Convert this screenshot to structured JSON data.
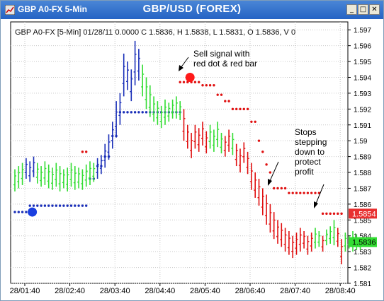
{
  "window": {
    "app_title": "GBP A0-FX 5-Min",
    "chart_title": "GBP/USD (FOREX)",
    "buttons": {
      "minimize": "_",
      "maximize": "□",
      "close": "✕"
    }
  },
  "info_line": "GBP A0-FX [5-Min] 01/28/11  0.0000  C 1.5836, H 1.5838, L 1.5831, O 1.5836, V 0",
  "annotations": {
    "sell_signal": [
      "Sell signal with",
      "red dot & red bar"
    ],
    "stops": [
      "Stops",
      "stepping",
      "down to",
      "protect",
      "profit"
    ]
  },
  "price_labels": {
    "stop": {
      "text": "1.5854",
      "value": 1.5854,
      "color": "#e83030"
    },
    "last": {
      "text": "1.5836",
      "value": 1.5836,
      "color": "#33dd33"
    }
  },
  "colors": {
    "up": "#33dd33",
    "down": "#e01010",
    "blue": "#1a2fb8",
    "stop_dot": "#e01010",
    "blue_dot": "#1a2fb8"
  },
  "chart_data": {
    "type": "bar",
    "title": "GBP/USD (FOREX)",
    "ylim": [
      1.581,
      1.5975
    ],
    "yticks": [
      "1.597",
      "1.596",
      "1.595",
      "1.594",
      "1.593",
      "1.592",
      "1.591",
      "1.59",
      "1.589",
      "1.588",
      "1.587",
      "1.586",
      "1.585",
      "1.584",
      "1.583",
      "1.582",
      "1.581"
    ],
    "xticks": [
      {
        "label": "28/01:40",
        "index": 0
      },
      {
        "label": "28/02:40",
        "index": 12
      },
      {
        "label": "28/03:40",
        "index": 24
      },
      {
        "label": "28/04:40",
        "index": 36
      },
      {
        "label": "28/05:40",
        "index": 48
      },
      {
        "label": "28/06:40",
        "index": 60
      },
      {
        "label": "28/07:40",
        "index": 72
      },
      {
        "label": "28/08:40",
        "index": 84
      }
    ],
    "bars": [
      {
        "h": 1.5882,
        "l": 1.5868,
        "c": "up"
      },
      {
        "h": 1.5884,
        "l": 1.587,
        "c": "up"
      },
      {
        "h": 1.5886,
        "l": 1.5872,
        "c": "up"
      },
      {
        "h": 1.5889,
        "l": 1.5876,
        "c": "blue"
      },
      {
        "h": 1.5887,
        "l": 1.5874,
        "c": "blue"
      },
      {
        "h": 1.589,
        "l": 1.5877,
        "c": "blue"
      },
      {
        "h": 1.5886,
        "l": 1.5873,
        "c": "up"
      },
      {
        "h": 1.5884,
        "l": 1.5871,
        "c": "up"
      },
      {
        "h": 1.5887,
        "l": 1.5872,
        "c": "up"
      },
      {
        "h": 1.5885,
        "l": 1.587,
        "c": "up"
      },
      {
        "h": 1.5883,
        "l": 1.5869,
        "c": "up"
      },
      {
        "h": 1.5886,
        "l": 1.5871,
        "c": "up"
      },
      {
        "h": 1.5884,
        "l": 1.5868,
        "c": "up"
      },
      {
        "h": 1.5882,
        "l": 1.587,
        "c": "up"
      },
      {
        "h": 1.5883,
        "l": 1.5868,
        "c": "up"
      },
      {
        "h": 1.5886,
        "l": 1.5871,
        "c": "up"
      },
      {
        "h": 1.5884,
        "l": 1.5869,
        "c": "up"
      },
      {
        "h": 1.5883,
        "l": 1.587,
        "c": "up"
      },
      {
        "h": 1.5882,
        "l": 1.5869,
        "c": "up"
      },
      {
        "h": 1.5885,
        "l": 1.5871,
        "c": "up"
      },
      {
        "h": 1.5887,
        "l": 1.5872,
        "c": "up"
      },
      {
        "h": 1.5886,
        "l": 1.5874,
        "c": "up"
      },
      {
        "h": 1.5889,
        "l": 1.5876,
        "c": "blue"
      },
      {
        "h": 1.5891,
        "l": 1.5879,
        "c": "blue"
      },
      {
        "h": 1.5898,
        "l": 1.5883,
        "c": "blue"
      },
      {
        "h": 1.5904,
        "l": 1.5888,
        "c": "blue"
      },
      {
        "h": 1.5912,
        "l": 1.5895,
        "c": "blue"
      },
      {
        "h": 1.5925,
        "l": 1.5902,
        "c": "blue"
      },
      {
        "h": 1.593,
        "l": 1.591,
        "c": "blue"
      },
      {
        "h": 1.5955,
        "l": 1.5928,
        "c": "blue"
      },
      {
        "h": 1.595,
        "l": 1.5932,
        "c": "blue"
      },
      {
        "h": 1.5945,
        "l": 1.5925,
        "c": "blue"
      },
      {
        "h": 1.5963,
        "l": 1.5935,
        "c": "blue"
      },
      {
        "h": 1.5958,
        "l": 1.5938,
        "c": "blue"
      },
      {
        "h": 1.5948,
        "l": 1.5928,
        "c": "up"
      },
      {
        "h": 1.594,
        "l": 1.592,
        "c": "up"
      },
      {
        "h": 1.5935,
        "l": 1.5915,
        "c": "up"
      },
      {
        "h": 1.5928,
        "l": 1.5912,
        "c": "up"
      },
      {
        "h": 1.5925,
        "l": 1.591,
        "c": "up"
      },
      {
        "h": 1.5922,
        "l": 1.5908,
        "c": "up"
      },
      {
        "h": 1.5926,
        "l": 1.591,
        "c": "up"
      },
      {
        "h": 1.5924,
        "l": 1.5912,
        "c": "up"
      },
      {
        "h": 1.5926,
        "l": 1.5914,
        "c": "up"
      },
      {
        "h": 1.5928,
        "l": 1.5914,
        "c": "up"
      },
      {
        "h": 1.5925,
        "l": 1.5913,
        "c": "up"
      },
      {
        "h": 1.592,
        "l": 1.59,
        "c": "down"
      },
      {
        "h": 1.591,
        "l": 1.5895,
        "c": "down"
      },
      {
        "h": 1.5905,
        "l": 1.5889,
        "c": "down"
      },
      {
        "h": 1.591,
        "l": 1.5895,
        "c": "down"
      },
      {
        "h": 1.5908,
        "l": 1.5893,
        "c": "down"
      },
      {
        "h": 1.5912,
        "l": 1.5897,
        "c": "down"
      },
      {
        "h": 1.5906,
        "l": 1.5892,
        "c": "down"
      },
      {
        "h": 1.591,
        "l": 1.5895,
        "c": "up"
      },
      {
        "h": 1.5907,
        "l": 1.5893,
        "c": "up"
      },
      {
        "h": 1.5912,
        "l": 1.5896,
        "c": "up"
      },
      {
        "h": 1.5905,
        "l": 1.5892,
        "c": "up"
      },
      {
        "h": 1.5903,
        "l": 1.589,
        "c": "down"
      },
      {
        "h": 1.5907,
        "l": 1.5893,
        "c": "down"
      },
      {
        "h": 1.5905,
        "l": 1.5891,
        "c": "up"
      },
      {
        "h": 1.5898,
        "l": 1.5884,
        "c": "down"
      },
      {
        "h": 1.5895,
        "l": 1.588,
        "c": "down"
      },
      {
        "h": 1.5899,
        "l": 1.5886,
        "c": "down"
      },
      {
        "h": 1.5893,
        "l": 1.5879,
        "c": "down"
      },
      {
        "h": 1.5886,
        "l": 1.5869,
        "c": "down"
      },
      {
        "h": 1.588,
        "l": 1.5864,
        "c": "down"
      },
      {
        "h": 1.5876,
        "l": 1.5859,
        "c": "down"
      },
      {
        "h": 1.587,
        "l": 1.5853,
        "c": "down"
      },
      {
        "h": 1.5866,
        "l": 1.5847,
        "c": "down"
      },
      {
        "h": 1.586,
        "l": 1.5842,
        "c": "down"
      },
      {
        "h": 1.5855,
        "l": 1.5838,
        "c": "down"
      },
      {
        "h": 1.585,
        "l": 1.5835,
        "c": "down"
      },
      {
        "h": 1.5848,
        "l": 1.5833,
        "c": "down"
      },
      {
        "h": 1.5845,
        "l": 1.583,
        "c": "down"
      },
      {
        "h": 1.5843,
        "l": 1.5828,
        "c": "down"
      },
      {
        "h": 1.584,
        "l": 1.5826,
        "c": "down"
      },
      {
        "h": 1.5842,
        "l": 1.5828,
        "c": "down"
      },
      {
        "h": 1.5845,
        "l": 1.583,
        "c": "down"
      },
      {
        "h": 1.5843,
        "l": 1.5832,
        "c": "down"
      },
      {
        "h": 1.584,
        "l": 1.5828,
        "c": "down"
      },
      {
        "h": 1.5842,
        "l": 1.583,
        "c": "down"
      },
      {
        "h": 1.5845,
        "l": 1.5832,
        "c": "up"
      },
      {
        "h": 1.5843,
        "l": 1.5833,
        "c": "up"
      },
      {
        "h": 1.584,
        "l": 1.583,
        "c": "down"
      },
      {
        "h": 1.5844,
        "l": 1.5834,
        "c": "up"
      },
      {
        "h": 1.5846,
        "l": 1.5835,
        "c": "up"
      },
      {
        "h": 1.585,
        "l": 1.5834,
        "c": "up"
      },
      {
        "h": 1.5845,
        "l": 1.5833,
        "c": "down"
      },
      {
        "h": 1.5838,
        "l": 1.5822,
        "c": "down"
      },
      {
        "h": 1.5842,
        "l": 1.583,
        "c": "up"
      },
      {
        "h": 1.584,
        "l": 1.5832,
        "c": "up"
      },
      {
        "h": 1.5843,
        "l": 1.583,
        "c": "up"
      },
      {
        "h": 1.5841,
        "l": 1.5831,
        "c": "up"
      },
      {
        "h": 1.5838,
        "l": 1.5831,
        "c": "up"
      }
    ],
    "blue_stops": [
      {
        "from": 0,
        "to": 3,
        "y": 1.5855
      },
      {
        "from": 4,
        "to": 19,
        "y": 1.5859
      },
      {
        "from": 20,
        "to": 21,
        "y": 1.5876
      },
      {
        "from": 22,
        "to": 23,
        "y": 1.5884
      },
      {
        "from": 24,
        "to": 25,
        "y": 1.589
      },
      {
        "from": 26,
        "to": 27,
        "y": 1.5903
      },
      {
        "from": 28,
        "to": 44,
        "y": 1.5918
      }
    ],
    "red_stops": [
      {
        "from": 18,
        "to": 19,
        "y": 1.5893
      },
      {
        "from": 44,
        "to": 49,
        "y": 1.5937
      },
      {
        "from": 50,
        "to": 53,
        "y": 1.5935
      },
      {
        "from": 54,
        "to": 55,
        "y": 1.5929
      },
      {
        "from": 56,
        "to": 57,
        "y": 1.5925
      },
      {
        "from": 58,
        "to": 62,
        "y": 1.592
      },
      {
        "from": 63,
        "to": 64,
        "y": 1.5912
      },
      {
        "from": 65,
        "to": 65,
        "y": 1.59
      },
      {
        "from": 66,
        "to": 66,
        "y": 1.5893
      },
      {
        "from": 67,
        "to": 67,
        "y": 1.5885
      },
      {
        "from": 68,
        "to": 68,
        "y": 1.588
      },
      {
        "from": 69,
        "to": 72,
        "y": 1.587
      },
      {
        "from": 73,
        "to": 81,
        "y": 1.5867
      },
      {
        "from": 82,
        "to": 87,
        "y": 1.5854
      }
    ],
    "big_dots": [
      {
        "index": 2,
        "y": 1.5855,
        "color": "blue"
      },
      {
        "index": 44,
        "y": 1.594,
        "color": "red"
      }
    ]
  }
}
